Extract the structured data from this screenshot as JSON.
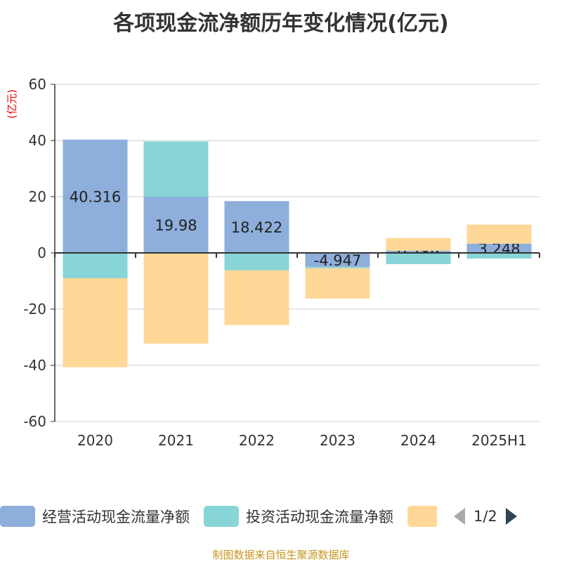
{
  "title": "各项现金流净额历年变化情况(亿元)",
  "source": "制图数据来自恒生聚源数据库",
  "legend": {
    "page": "1/2",
    "prev_icon": "triangle-left-icon",
    "next_icon": "triangle-right-icon"
  },
  "chart_data": {
    "type": "bar",
    "stacked": true,
    "title": "各项现金流净额历年变化情况(亿元)",
    "ylabel": "(亿元)",
    "ylim": [
      -60,
      60
    ],
    "yticks": [
      -60,
      -40,
      -20,
      0,
      20,
      40,
      60
    ],
    "grid": true,
    "legend_position": "bottom",
    "categories": [
      "2020",
      "2021",
      "2022",
      "2023",
      "2024",
      "2025H1"
    ],
    "series": [
      {
        "name": "经营活动现金流量净额",
        "color": "#8eaedb",
        "values": [
          40.316,
          19.98,
          18.422,
          -4.947,
          0.789,
          3.248
        ],
        "labels": [
          "40.316",
          "19.98",
          "18.422",
          "-4.947",
          "0.789",
          "3.248"
        ]
      },
      {
        "name": "投资活动现金流量净额",
        "color": "#88d5d8",
        "values": [
          -9.0,
          19.7,
          -6.2,
          -0.5,
          -4.0,
          -2.0
        ]
      },
      {
        "name": "",
        "color": "#ffd898",
        "values": [
          -31.7,
          -32.3,
          -19.5,
          -10.8,
          4.5,
          6.8
        ]
      }
    ]
  }
}
